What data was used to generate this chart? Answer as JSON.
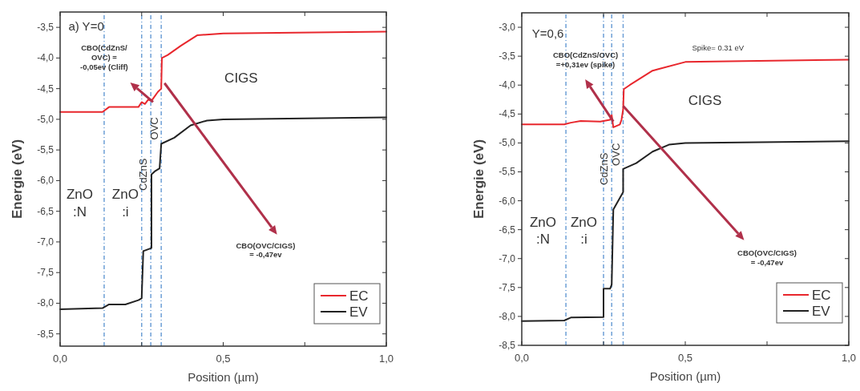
{
  "chart_data": [
    {
      "type": "line",
      "xlabel": "Position (µm)",
      "ylabel": "Energie (eV)",
      "xlim": [
        0,
        1
      ],
      "ylim": [
        -8.7,
        -3.25
      ],
      "xticks": [
        {
          "value": 0,
          "label": "0,0"
        },
        {
          "value": 0.25,
          "label": null
        },
        {
          "value": 0.5,
          "label": "0,5"
        },
        {
          "value": 0.75,
          "label": null
        },
        {
          "value": 1,
          "label": "1,0"
        }
      ],
      "yticks": [
        {
          "value": -3.5,
          "label": "-3,5"
        },
        {
          "value": -4,
          "label": "-4,0"
        },
        {
          "value": -4.5,
          "label": "-4,5"
        },
        {
          "value": -5,
          "label": "-5,0"
        },
        {
          "value": -5.5,
          "label": "-5,5"
        },
        {
          "value": -6,
          "label": "-6,0"
        },
        {
          "value": -6.5,
          "label": "-6,5"
        },
        {
          "value": -7,
          "label": "-7,0"
        },
        {
          "value": -7.5,
          "label": "-7,5"
        },
        {
          "value": -8,
          "label": "-8,0"
        },
        {
          "value": -8.5,
          "label": "-8,5"
        }
      ],
      "series": [
        {
          "name": "EC",
          "color": "#e8272d",
          "x": [
            0,
            0.13,
            0.15,
            0.24,
            0.25,
            0.26,
            0.27,
            0.28,
            0.3,
            0.31,
            0.312,
            0.33,
            0.37,
            0.42,
            0.5,
            1
          ],
          "values": [
            -4.88,
            -4.88,
            -4.8,
            -4.8,
            -4.72,
            -4.75,
            -4.68,
            -4.7,
            -4.55,
            -4.5,
            -4,
            -3.95,
            -3.8,
            -3.63,
            -3.6,
            -3.57
          ]
        },
        {
          "name": "EV",
          "color": "#222222",
          "x": [
            0,
            0.13,
            0.15,
            0.2,
            0.24,
            0.25,
            0.255,
            0.28,
            0.28,
            0.29,
            0.305,
            0.31,
            0.35,
            0.4,
            0.45,
            0.5,
            1
          ],
          "values": [
            -8.1,
            -8.08,
            -8.02,
            -8.02,
            -7.95,
            -7.92,
            -7.15,
            -7.1,
            -5.9,
            -5.85,
            -5.8,
            -5.4,
            -5.3,
            -5.1,
            -5.02,
            -5,
            -4.97
          ]
        }
      ],
      "ref_lines": [
        {
          "axis": "x",
          "value": 0.135,
          "color": "#6d9fd6",
          "line_style": "dashed"
        },
        {
          "axis": "x",
          "value": 0.25,
          "color": "#6d9fd6",
          "line_style": "dashed"
        },
        {
          "axis": "x",
          "value": 0.278,
          "color": "#6d9fd6",
          "line_style": "dashed"
        },
        {
          "axis": "x",
          "value": 0.31,
          "color": "#6d9fd6",
          "line_style": "dashed"
        }
      ],
      "annotations": [
        "a) Y=0",
        "CBO(CdZnS/\nOVC) =\n-0,05ev (Cliff)",
        "CIGS",
        "ZnO\n:N",
        "ZnO\n:i",
        "CdZnS",
        "OVC",
        "CBO(OVC/CIGS)\n= -0,47ev"
      ],
      "legend": "bottom right",
      "grid": false
    },
    {
      "type": "line",
      "xlabel": "Position (µm)",
      "ylabel": "Energie (eV)",
      "xlim": [
        0,
        1
      ],
      "ylim": [
        -8.5,
        -2.75
      ],
      "xticks": [
        {
          "value": 0,
          "label": "0,0"
        },
        {
          "value": 0.25,
          "label": null
        },
        {
          "value": 0.5,
          "label": "0,5"
        },
        {
          "value": 0.75,
          "label": null
        },
        {
          "value": 1,
          "label": "1,0"
        }
      ],
      "yticks": [
        {
          "value": -3,
          "label": "-3,0"
        },
        {
          "value": -3.5,
          "label": "-3,5"
        },
        {
          "value": -4,
          "label": "-4,0"
        },
        {
          "value": -4.5,
          "label": "-4,5"
        },
        {
          "value": -5,
          "label": "-5,0"
        },
        {
          "value": -5.5,
          "label": "-5,5"
        },
        {
          "value": -6,
          "label": "-6,0"
        },
        {
          "value": -6.5,
          "label": "-6,5"
        },
        {
          "value": -7,
          "label": "-7,0"
        },
        {
          "value": -7.5,
          "label": "-7,5"
        },
        {
          "value": -8,
          "label": "-8,0"
        },
        {
          "value": -8.5,
          "label": "-8,5"
        }
      ],
      "series": [
        {
          "name": "EC",
          "color": "#e8272d",
          "x": [
            0,
            0.13,
            0.15,
            0.18,
            0.24,
            0.27,
            0.275,
            0.28,
            0.3,
            0.305,
            0.31,
            0.312,
            0.33,
            0.4,
            0.42,
            0.5,
            1
          ],
          "values": [
            -4.68,
            -4.68,
            -4.65,
            -4.62,
            -4.63,
            -4.6,
            -4.52,
            -4.73,
            -4.68,
            -4.6,
            -4.42,
            -4.07,
            -4,
            -3.75,
            -3.72,
            -3.6,
            -3.56
          ]
        },
        {
          "name": "EV",
          "color": "#222222",
          "x": [
            0,
            0.13,
            0.15,
            0.25,
            0.25,
            0.27,
            0.275,
            0.28,
            0.29,
            0.3,
            0.31,
            0.31,
            0.35,
            0.4,
            0.45,
            0.5,
            1
          ],
          "values": [
            -8.08,
            -8.07,
            -8.02,
            -8.01,
            -7.52,
            -7.52,
            -7.45,
            -6.15,
            -6.05,
            -5.95,
            -5.85,
            -5.45,
            -5.35,
            -5.15,
            -5.03,
            -5,
            -4.97
          ]
        }
      ],
      "ref_lines": [
        {
          "axis": "x",
          "value": 0.135,
          "color": "#6d9fd6",
          "line_style": "dashed"
        },
        {
          "axis": "x",
          "value": 0.25,
          "color": "#6d9fd6",
          "line_style": "dashed"
        },
        {
          "axis": "x",
          "value": 0.275,
          "color": "#6d9fd6",
          "line_style": "dashed"
        },
        {
          "axis": "x",
          "value": 0.31,
          "color": "#6d9fd6",
          "line_style": "dashed"
        }
      ],
      "annotations": [
        "Y=0,6",
        "CBO(CdZnS/OVC)\n=+0,31ev (spike)",
        "Spike= 0.31 eV",
        "CIGS",
        "ZnO\n:N",
        "ZnO\n:i",
        "CdZnS",
        "OVC",
        "CBO(OVC/CIGS)\n= -0,47ev"
      ],
      "legend": "bottom right",
      "grid": false
    }
  ]
}
